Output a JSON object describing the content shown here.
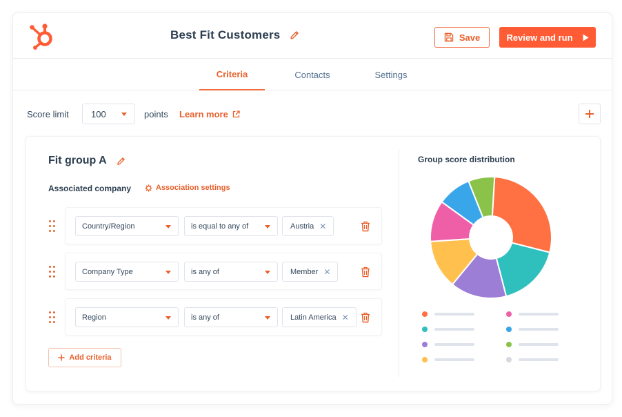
{
  "header": {
    "title": "Best Fit Customers",
    "save_label": "Save",
    "review_label": "Review and run",
    "brand_color": "#ff5c35"
  },
  "tabs": [
    {
      "label": "Criteria",
      "active": true
    },
    {
      "label": "Contacts",
      "active": false
    },
    {
      "label": "Settings",
      "active": false
    }
  ],
  "score": {
    "label": "Score limit",
    "value": "100",
    "points_label": "points",
    "learn_more": "Learn more"
  },
  "group": {
    "title": "Fit group A",
    "association_label": "Associated company",
    "association_settings": "Association settings",
    "criteria": [
      {
        "property": "Country/Region",
        "operator": "is equal to any of",
        "value": "Austria"
      },
      {
        "property": "Company Type",
        "operator": "is any of",
        "value": "Member"
      },
      {
        "property": "Region",
        "operator": "is any of",
        "value": "Latin America"
      }
    ],
    "add_criteria_label": "Add criteria"
  },
  "distribution": {
    "title": "Group score distribution",
    "slices": [
      {
        "color": "#ff7043",
        "value": 28
      },
      {
        "color": "#2fbfbd",
        "value": 17
      },
      {
        "color": "#9c7ed6",
        "value": 15
      },
      {
        "color": "#ffc04d",
        "value": 13
      },
      {
        "color": "#ef5fa7",
        "value": 11
      },
      {
        "color": "#3aa6ea",
        "value": 9
      },
      {
        "color": "#8bc34a",
        "value": 7
      }
    ],
    "legend_colors": [
      "#ff7043",
      "#ef5fa7",
      "#2fbfbd",
      "#3aa6ea",
      "#9c7ed6",
      "#8bc34a",
      "#ffc04d",
      "#d6d9de"
    ]
  }
}
